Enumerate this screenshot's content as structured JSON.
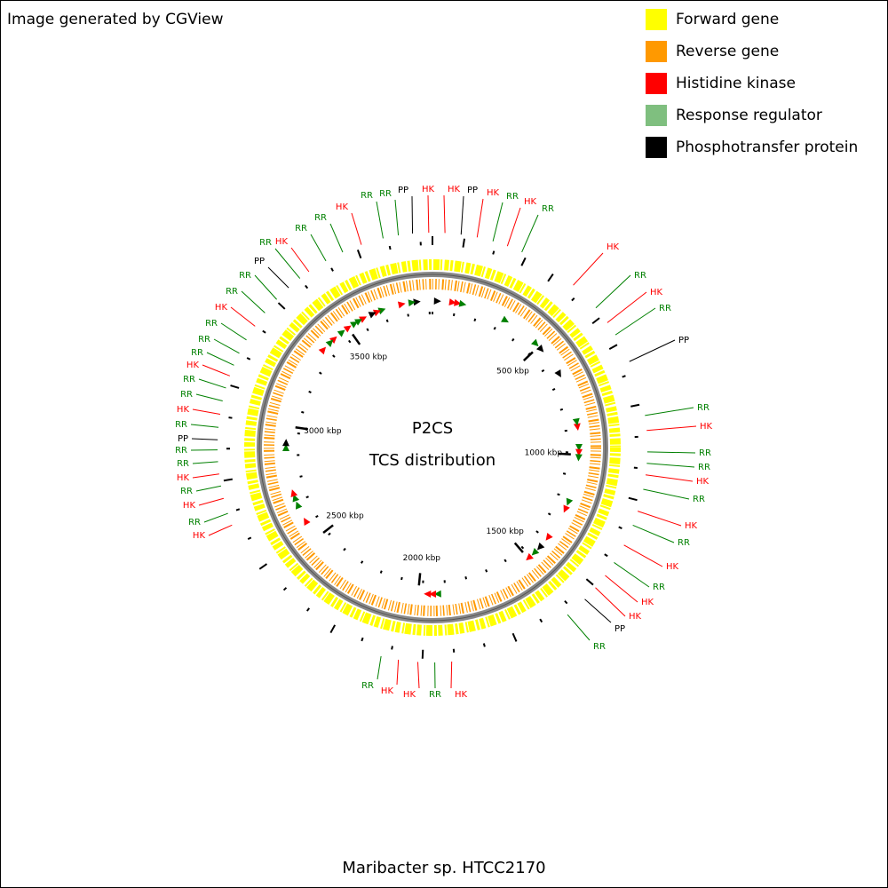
{
  "header": {
    "title": "Image generated by CGView"
  },
  "legend": [
    {
      "label": "Forward gene",
      "color": "#ffff00"
    },
    {
      "label": "Reverse gene",
      "color": "#ff9900"
    },
    {
      "label": "Histidine kinase",
      "color": "#ff0000"
    },
    {
      "label": "Response regulator",
      "color": "#7fbf7f"
    },
    {
      "label": "Phosphotransfer protein",
      "color": "#000000"
    }
  ],
  "center": {
    "title": "P2CS",
    "subtitle": "TCS distribution"
  },
  "scale_labels": [
    "500 kbp",
    "1000 kbp",
    "1500 kbp",
    "2000 kbp",
    "2500 kbp",
    "3000 kbp",
    "3500 kbp"
  ],
  "callouts": [
    {
      "label": "RR",
      "color": "#008000"
    },
    {
      "label": "RR",
      "color": "#008000"
    },
    {
      "label": "PP",
      "color": "#000000"
    },
    {
      "label": "HK",
      "color": "#ff0000"
    },
    {
      "label": "HK",
      "color": "#ff0000"
    },
    {
      "label": "PP",
      "color": "#000000"
    },
    {
      "label": "HK",
      "color": "#ff0000"
    },
    {
      "label": "RR",
      "color": "#008000"
    },
    {
      "label": "HK",
      "color": "#ff0000"
    },
    {
      "label": "RR",
      "color": "#008000"
    },
    {
      "label": "HK",
      "color": "#ff0000"
    },
    {
      "label": "RR",
      "color": "#008000"
    },
    {
      "label": "HK",
      "color": "#ff0000"
    },
    {
      "label": "RR",
      "color": "#008000"
    },
    {
      "label": "PP",
      "color": "#000000"
    },
    {
      "label": "RR",
      "color": "#008000"
    },
    {
      "label": "HK",
      "color": "#ff0000"
    },
    {
      "label": "RR",
      "color": "#008000"
    },
    {
      "label": "RR",
      "color": "#008000"
    },
    {
      "label": "HK",
      "color": "#ff0000"
    },
    {
      "label": "RR",
      "color": "#008000"
    },
    {
      "label": "HK",
      "color": "#ff0000"
    },
    {
      "label": "RR",
      "color": "#008000"
    },
    {
      "label": "HK",
      "color": "#ff0000"
    },
    {
      "label": "RR",
      "color": "#008000"
    },
    {
      "label": "HK",
      "color": "#ff0000"
    },
    {
      "label": "HK",
      "color": "#ff0000"
    },
    {
      "label": "PP",
      "color": "#000000"
    },
    {
      "label": "RR",
      "color": "#008000"
    },
    {
      "label": "RR",
      "color": "#008000"
    },
    {
      "label": "HK",
      "color": "#ff0000"
    },
    {
      "label": "HK",
      "color": "#ff0000"
    },
    {
      "label": "RR",
      "color": "#008000"
    },
    {
      "label": "HK",
      "color": "#ff0000"
    },
    {
      "label": "HK",
      "color": "#ff0000"
    },
    {
      "label": "RR",
      "color": "#008000"
    },
    {
      "label": "HK",
      "color": "#ff0000"
    },
    {
      "label": "RR",
      "color": "#008000"
    },
    {
      "label": "HK",
      "color": "#ff0000"
    },
    {
      "label": "RR",
      "color": "#008000"
    },
    {
      "label": "RR",
      "color": "#008000"
    },
    {
      "label": "PP",
      "color": "#000000"
    },
    {
      "label": "RR",
      "color": "#008000"
    },
    {
      "label": "HK",
      "color": "#ff0000"
    },
    {
      "label": "RR",
      "color": "#008000"
    },
    {
      "label": "RR",
      "color": "#008000"
    },
    {
      "label": "HK",
      "color": "#ff0000"
    },
    {
      "label": "RR",
      "color": "#008000"
    },
    {
      "label": "RR",
      "color": "#008000"
    },
    {
      "label": "RR",
      "color": "#008000"
    },
    {
      "label": "HK",
      "color": "#ff0000"
    },
    {
      "label": "RR",
      "color": "#008000"
    },
    {
      "label": "RR",
      "color": "#008000"
    },
    {
      "label": "PP",
      "color": "#000000"
    },
    {
      "label": "RR",
      "color": "#008000"
    },
    {
      "label": "HK",
      "color": "#ff0000"
    },
    {
      "label": "RR",
      "color": "#008000"
    },
    {
      "label": "RR",
      "color": "#008000"
    },
    {
      "label": "HK",
      "color": "#ff0000"
    }
  ],
  "footer": {
    "organism": "Maribacter sp. HTCC2170"
  }
}
